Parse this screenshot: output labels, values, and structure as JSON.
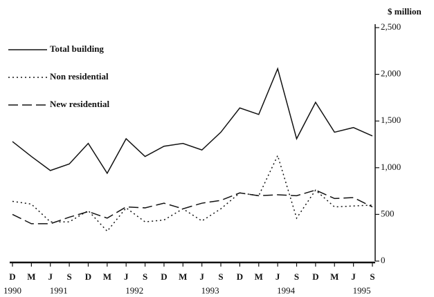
{
  "chart_data": {
    "type": "line",
    "y_unit": "$ million",
    "categories": [
      "D",
      "M",
      "J",
      "S",
      "D",
      "M",
      "J",
      "S",
      "D",
      "M",
      "J",
      "S",
      "D",
      "M",
      "J",
      "S",
      "D",
      "M",
      "J",
      "S"
    ],
    "years": [
      "1990",
      null,
      "1991",
      null,
      null,
      null,
      "1992",
      null,
      null,
      null,
      "1993",
      null,
      null,
      null,
      "1994",
      null,
      null,
      null,
      "1995",
      null
    ],
    "series": [
      {
        "name": "Total building",
        "color": "#111111",
        "dash": "none",
        "values": [
          1280,
          1120,
          970,
          1040,
          1260,
          940,
          1310,
          1120,
          1230,
          1260,
          1190,
          1380,
          1640,
          1570,
          2060,
          1310,
          1700,
          1380,
          1430,
          1340
        ]
      },
      {
        "name": "Non residential",
        "color": "#111111",
        "dash": "2 4",
        "values": [
          640,
          610,
          420,
          420,
          540,
          320,
          570,
          420,
          440,
          560,
          430,
          560,
          730,
          700,
          1130,
          460,
          760,
          580,
          590,
          600
        ]
      },
      {
        "name": "New residential",
        "color": "#111111",
        "dash": "14 6",
        "values": [
          500,
          400,
          400,
          470,
          530,
          460,
          580,
          570,
          620,
          560,
          620,
          650,
          730,
          700,
          710,
          700,
          760,
          670,
          680,
          580
        ]
      }
    ],
    "ylim": [
      0,
      2500
    ],
    "yticks": [
      0,
      500,
      {
        "value": 1000,
        "label": "1,000"
      },
      {
        "value": 1500,
        "label": "1,500"
      },
      {
        "value": 2000,
        "label": "2,000"
      },
      {
        "value": 2500,
        "label": "2,500"
      }
    ],
    "legend": "top-left"
  }
}
